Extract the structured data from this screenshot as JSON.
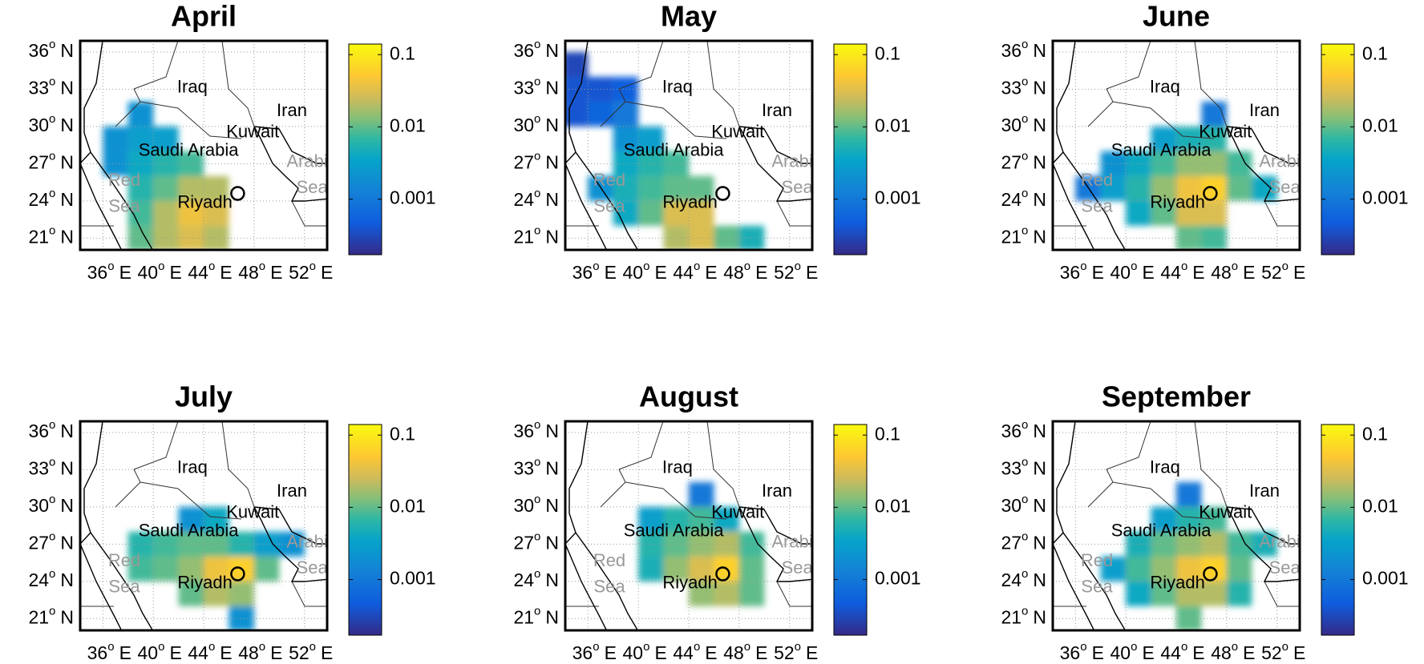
{
  "axes": {
    "lat_ticks": [
      36,
      33,
      30,
      27,
      24,
      21
    ],
    "lon_ticks": [
      36,
      40,
      44,
      48,
      52
    ],
    "degree_mark": "o",
    "lat_hemisphere": "N",
    "lon_hemisphere": "E",
    "grid": true
  },
  "colorbar": {
    "log": true,
    "lim": [
      0.00017,
      0.14
    ],
    "ticks": [
      0.1,
      0.01,
      0.001
    ],
    "colormap": "parula"
  },
  "places": [
    {
      "lines": [
        "Iraq"
      ]
    },
    {
      "lines": [
        "Iran"
      ]
    },
    {
      "lines": [
        "Kuwait"
      ]
    },
    {
      "lines": [
        "Saudi Arabia"
      ]
    },
    {
      "lines": [
        "Riyadh"
      ]
    },
    {
      "lines": [
        "Red",
        "Sea"
      ]
    },
    {
      "lines": [
        "Arabia",
        "Sea"
      ]
    }
  ],
  "panels": [
    {
      "title": "April",
      "cells": [
        [
          39,
          31,
          0.002
        ],
        [
          37,
          29,
          0.002
        ],
        [
          39,
          29,
          0.003
        ],
        [
          41,
          29,
          0.003
        ],
        [
          37,
          27,
          0.002
        ],
        [
          39,
          27,
          0.004
        ],
        [
          41,
          27,
          0.006
        ],
        [
          43,
          27,
          0.008
        ],
        [
          39,
          25,
          0.006
        ],
        [
          41,
          25,
          0.01
        ],
        [
          43,
          25,
          0.02
        ],
        [
          45,
          25,
          0.02
        ],
        [
          39,
          23,
          0.008
        ],
        [
          41,
          23,
          0.02
        ],
        [
          43,
          23,
          0.04
        ],
        [
          45,
          23,
          0.03
        ],
        [
          39,
          21,
          0.01
        ],
        [
          41,
          21,
          0.02
        ],
        [
          43,
          21,
          0.03
        ],
        [
          45,
          21,
          0.02
        ]
      ]
    },
    {
      "title": "May",
      "cells": [
        [
          35,
          35,
          0.0003
        ],
        [
          35,
          33,
          0.0004
        ],
        [
          37,
          33,
          0.0004
        ],
        [
          39,
          33,
          0.0005
        ],
        [
          35,
          31,
          0.0004
        ],
        [
          37,
          31,
          0.0006
        ],
        [
          39,
          31,
          0.001
        ],
        [
          39,
          29,
          0.002
        ],
        [
          41,
          29,
          0.003
        ],
        [
          39,
          27,
          0.004
        ],
        [
          41,
          27,
          0.006
        ],
        [
          43,
          27,
          0.008
        ],
        [
          37,
          25,
          0.002
        ],
        [
          39,
          25,
          0.005
        ],
        [
          41,
          25,
          0.008
        ],
        [
          43,
          25,
          0.01
        ],
        [
          45,
          25,
          0.01
        ],
        [
          39,
          23,
          0.004
        ],
        [
          41,
          23,
          0.01
        ],
        [
          43,
          23,
          0.03
        ],
        [
          45,
          23,
          0.03
        ],
        [
          43,
          21,
          0.02
        ],
        [
          45,
          21,
          0.03
        ],
        [
          47,
          21,
          0.01
        ],
        [
          49,
          21,
          0.005
        ]
      ]
    },
    {
      "title": "June",
      "cells": [
        [
          47,
          31,
          0.001
        ],
        [
          43,
          29,
          0.003
        ],
        [
          45,
          29,
          0.005
        ],
        [
          47,
          29,
          0.006
        ],
        [
          39,
          27,
          0.002
        ],
        [
          41,
          27,
          0.004
        ],
        [
          43,
          27,
          0.008
        ],
        [
          45,
          27,
          0.015
        ],
        [
          47,
          27,
          0.015
        ],
        [
          49,
          27,
          0.008
        ],
        [
          37,
          25,
          0.001
        ],
        [
          39,
          25,
          0.003
        ],
        [
          41,
          25,
          0.006
        ],
        [
          43,
          25,
          0.015
        ],
        [
          45,
          25,
          0.04
        ],
        [
          47,
          25,
          0.06
        ],
        [
          49,
          25,
          0.01
        ],
        [
          51,
          25,
          0.004
        ],
        [
          41,
          23,
          0.004
        ],
        [
          43,
          23,
          0.01
        ],
        [
          45,
          23,
          0.03
        ],
        [
          47,
          23,
          0.03
        ],
        [
          45,
          21,
          0.01
        ],
        [
          47,
          21,
          0.008
        ]
      ]
    },
    {
      "title": "July",
      "cells": [
        [
          43,
          29,
          0.002
        ],
        [
          45,
          29,
          0.004
        ],
        [
          39,
          27,
          0.006
        ],
        [
          41,
          27,
          0.008
        ],
        [
          43,
          27,
          0.01
        ],
        [
          45,
          27,
          0.01
        ],
        [
          47,
          27,
          0.006
        ],
        [
          49,
          27,
          0.003
        ],
        [
          51,
          27,
          0.002
        ],
        [
          39,
          25,
          0.008
        ],
        [
          41,
          25,
          0.01
        ],
        [
          43,
          25,
          0.015
        ],
        [
          45,
          25,
          0.04
        ],
        [
          47,
          25,
          0.06
        ],
        [
          49,
          25,
          0.01
        ],
        [
          43,
          23,
          0.01
        ],
        [
          45,
          23,
          0.02
        ],
        [
          47,
          23,
          0.015
        ],
        [
          47,
          21,
          0.002
        ]
      ]
    },
    {
      "title": "August",
      "cells": [
        [
          45,
          31,
          0.001
        ],
        [
          41,
          29,
          0.003
        ],
        [
          43,
          29,
          0.006
        ],
        [
          45,
          29,
          0.008
        ],
        [
          47,
          29,
          0.004
        ],
        [
          41,
          27,
          0.006
        ],
        [
          43,
          27,
          0.01
        ],
        [
          45,
          27,
          0.015
        ],
        [
          47,
          27,
          0.02
        ],
        [
          49,
          27,
          0.008
        ],
        [
          41,
          25,
          0.005
        ],
        [
          43,
          25,
          0.015
        ],
        [
          45,
          25,
          0.03
        ],
        [
          47,
          25,
          0.06
        ],
        [
          49,
          25,
          0.01
        ],
        [
          45,
          23,
          0.015
        ],
        [
          47,
          23,
          0.02
        ],
        [
          49,
          23,
          0.01
        ]
      ]
    },
    {
      "title": "September",
      "cells": [
        [
          45,
          31,
          0.001
        ],
        [
          43,
          29,
          0.003
        ],
        [
          45,
          29,
          0.006
        ],
        [
          47,
          29,
          0.008
        ],
        [
          41,
          27,
          0.005
        ],
        [
          43,
          27,
          0.01
        ],
        [
          45,
          27,
          0.015
        ],
        [
          47,
          27,
          0.02
        ],
        [
          49,
          27,
          0.008
        ],
        [
          51,
          27,
          0.005
        ],
        [
          39,
          25,
          0.003
        ],
        [
          41,
          25,
          0.008
        ],
        [
          43,
          25,
          0.015
        ],
        [
          45,
          25,
          0.04
        ],
        [
          47,
          25,
          0.06
        ],
        [
          49,
          25,
          0.01
        ],
        [
          41,
          23,
          0.004
        ],
        [
          43,
          23,
          0.01
        ],
        [
          45,
          23,
          0.02
        ],
        [
          47,
          23,
          0.02
        ],
        [
          49,
          23,
          0.006
        ],
        [
          45,
          21,
          0.01
        ]
      ]
    }
  ]
}
